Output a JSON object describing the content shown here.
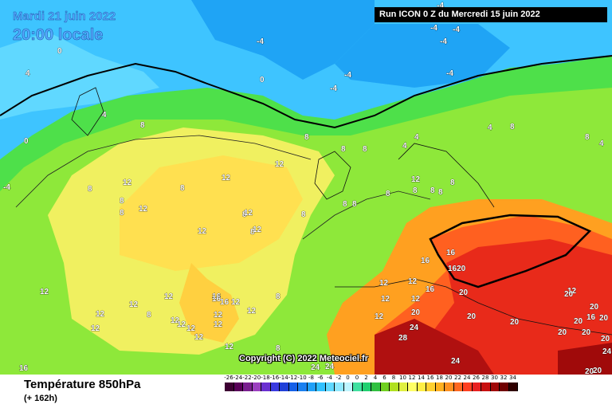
{
  "header": {
    "date": "Mardi 21 juin 2022",
    "time": "20:00 locale",
    "run": "Run ICON 0 Z du Mercredi 15 juin 2022"
  },
  "copyright": "Copyright (C) 2022 Meteociel.fr",
  "footer": {
    "title": "Température 850hPa",
    "subtitle": "(+ 162h)"
  },
  "scale": {
    "labels": [
      "-26",
      "-24",
      "-22",
      "-20",
      "-18",
      "-16",
      "-14",
      "-12",
      "-10",
      "-8",
      "-6",
      "-4",
      "-2",
      "0",
      "0",
      "2",
      "4",
      "6",
      "8",
      "10",
      "12",
      "14",
      "16",
      "18",
      "20",
      "22",
      "24",
      "26",
      "28",
      "30",
      "32",
      "34"
    ],
    "colors": [
      "#3d0033",
      "#5a0059",
      "#7a1f8f",
      "#9b3fbf",
      "#6a2fd0",
      "#3a3ae0",
      "#2040d8",
      "#1560e8",
      "#1a80f0",
      "#20a0f8",
      "#30c0ff",
      "#60d8ff",
      "#90e8ff",
      "#bff4ff",
      "#40e0a0",
      "#20d070",
      "#30c040",
      "#70d020",
      "#b0e020",
      "#e0f040",
      "#ffff66",
      "#ffee44",
      "#ffd030",
      "#ffb020",
      "#ff9020",
      "#ff6820",
      "#ff4020",
      "#e82020",
      "#c81010",
      "#a00808",
      "#700000",
      "#300000"
    ]
  },
  "labels": [
    {
      "t": "-4"
    },
    {
      "t": "-4"
    },
    {
      "t": "-4"
    },
    {
      "t": "-4"
    },
    {
      "t": "-4"
    },
    {
      "t": "-4"
    },
    {
      "t": "-4"
    },
    {
      "t": "-4"
    },
    {
      "t": "0"
    },
    {
      "t": "4"
    },
    {
      "t": "0"
    },
    {
      "t": "0"
    },
    {
      "t": "-4"
    },
    {
      "t": "4"
    },
    {
      "t": "8"
    },
    {
      "t": "8"
    },
    {
      "t": "4"
    },
    {
      "t": "4"
    },
    {
      "t": "8"
    },
    {
      "t": "8"
    },
    {
      "t": "8"
    },
    {
      "t": "8"
    },
    {
      "t": "4"
    },
    {
      "t": "4"
    },
    {
      "t": "12"
    },
    {
      "t": "12"
    },
    {
      "t": "8"
    },
    {
      "t": "12"
    },
    {
      "t": "8"
    },
    {
      "t": "8"
    },
    {
      "t": "8"
    },
    {
      "t": "12"
    },
    {
      "t": "8"
    },
    {
      "t": "8"
    },
    {
      "t": "8"
    },
    {
      "t": "8"
    },
    {
      "t": "8"
    },
    {
      "t": "12"
    },
    {
      "t": "8"
    },
    {
      "t": "8"
    },
    {
      "t": "8"
    },
    {
      "t": "8"
    },
    {
      "t": "12"
    },
    {
      "t": "16"
    },
    {
      "t": "16"
    },
    {
      "t": "1620"
    },
    {
      "t": "12"
    },
    {
      "t": "12"
    },
    {
      "t": "12"
    },
    {
      "t": "12"
    },
    {
      "t": "16"
    },
    {
      "t": "20"
    },
    {
      "t": "12"
    },
    {
      "t": "8"
    },
    {
      "t": "12"
    },
    {
      "t": "16"
    },
    {
      "t": "16"
    },
    {
      "t": "12"
    },
    {
      "t": "12"
    },
    {
      "t": "12"
    },
    {
      "t": "20"
    },
    {
      "t": "20"
    },
    {
      "t": "24"
    },
    {
      "t": "28"
    },
    {
      "t": "24"
    },
    {
      "t": "20"
    },
    {
      "t": "20"
    },
    {
      "t": "20"
    },
    {
      "t": "20"
    },
    {
      "t": "16"
    },
    {
      "t": "20"
    },
    {
      "t": "20"
    },
    {
      "t": "20"
    },
    {
      "t": "24"
    },
    {
      "t": "20"
    },
    {
      "t": "20"
    },
    {
      "t": "24"
    },
    {
      "t": "12"
    },
    {
      "t": "12"
    },
    {
      "t": "12"
    },
    {
      "t": "12"
    },
    {
      "t": "12"
    },
    {
      "t": "12"
    },
    {
      "t": "12"
    },
    {
      "t": "12"
    },
    {
      "t": "12"
    },
    {
      "t": "12"
    },
    {
      "t": "16"
    },
    {
      "t": "12"
    },
    {
      "t": "8"
    },
    {
      "t": "12"
    },
    {
      "t": "12"
    },
    {
      "t": "8"
    },
    {
      "t": "8"
    },
    {
      "t": "16"
    },
    {
      "t": "20"
    },
    {
      "t": "24"
    }
  ]
}
